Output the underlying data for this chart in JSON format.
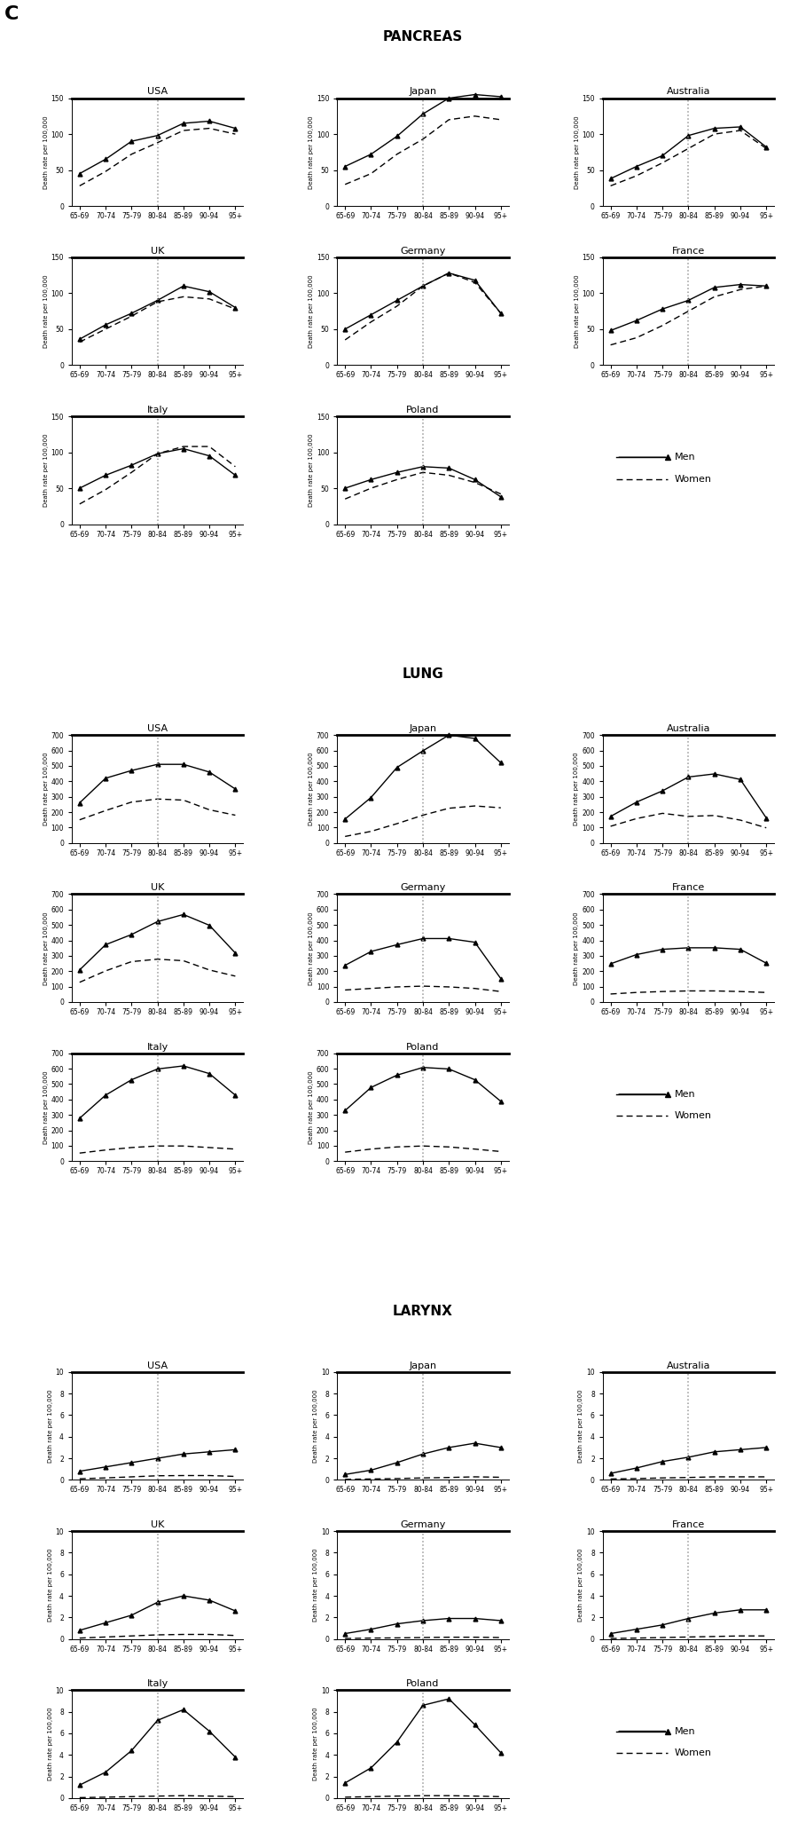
{
  "x_labels": [
    "65-69",
    "70-74",
    "75-79",
    "80-84",
    "85-89",
    "90-94",
    "95+"
  ],
  "x_vals": [
    0,
    1,
    2,
    3,
    4,
    5,
    6
  ],
  "pancreas": {
    "USA": {
      "men": [
        45,
        65,
        90,
        98,
        115,
        118,
        108
      ],
      "women": [
        28,
        48,
        72,
        88,
        105,
        108,
        100
      ]
    },
    "Japan": {
      "men": [
        55,
        72,
        97,
        128,
        150,
        155,
        152
      ],
      "women": [
        30,
        45,
        72,
        93,
        120,
        125,
        120
      ]
    },
    "Australia": {
      "men": [
        38,
        55,
        70,
        98,
        108,
        110,
        82
      ],
      "women": [
        28,
        42,
        60,
        80,
        100,
        105,
        80
      ]
    },
    "UK": {
      "men": [
        36,
        56,
        72,
        90,
        110,
        102,
        80
      ],
      "women": [
        32,
        50,
        68,
        88,
        95,
        92,
        78
      ]
    },
    "Germany": {
      "men": [
        50,
        70,
        90,
        110,
        128,
        118,
        72
      ],
      "women": [
        35,
        60,
        82,
        110,
        128,
        115,
        72
      ]
    },
    "France": {
      "men": [
        48,
        62,
        78,
        90,
        108,
        112,
        110
      ],
      "women": [
        28,
        38,
        55,
        75,
        95,
        105,
        110
      ]
    },
    "Italy": {
      "men": [
        50,
        68,
        82,
        98,
        105,
        95,
        68
      ],
      "women": [
        28,
        48,
        72,
        98,
        108,
        108,
        80
      ]
    },
    "Poland": {
      "men": [
        50,
        62,
        72,
        80,
        78,
        62,
        38
      ],
      "women": [
        35,
        50,
        62,
        72,
        68,
        58,
        42
      ]
    }
  },
  "lung": {
    "USA": {
      "men": [
        260,
        420,
        470,
        510,
        510,
        460,
        350
      ],
      "women": [
        150,
        210,
        265,
        285,
        278,
        215,
        180
      ]
    },
    "Japan": {
      "men": [
        155,
        295,
        490,
        598,
        700,
        678,
        520
      ],
      "women": [
        42,
        75,
        125,
        180,
        225,
        240,
        228
      ]
    },
    "Australia": {
      "men": [
        172,
        265,
        338,
        428,
        448,
        412,
        162
      ],
      "women": [
        108,
        158,
        192,
        172,
        178,
        148,
        98
      ]
    },
    "UK": {
      "men": [
        208,
        372,
        438,
        522,
        568,
        498,
        318
      ],
      "women": [
        128,
        202,
        262,
        278,
        268,
        208,
        168
      ]
    },
    "Germany": {
      "men": [
        238,
        328,
        372,
        412,
        412,
        388,
        152
      ],
      "women": [
        78,
        88,
        98,
        103,
        98,
        88,
        68
      ]
    },
    "France": {
      "men": [
        248,
        308,
        342,
        352,
        352,
        342,
        252
      ],
      "women": [
        52,
        62,
        68,
        72,
        72,
        68,
        62
      ]
    },
    "Italy": {
      "men": [
        278,
        428,
        528,
        598,
        618,
        568,
        428
      ],
      "women": [
        52,
        72,
        88,
        98,
        98,
        88,
        78
      ]
    },
    "Poland": {
      "men": [
        328,
        478,
        558,
        608,
        598,
        528,
        388
      ],
      "women": [
        58,
        78,
        92,
        98,
        92,
        78,
        62
      ]
    }
  },
  "larynx": {
    "USA": {
      "men": [
        0.8,
        1.2,
        1.6,
        2.0,
        2.4,
        2.6,
        2.8
      ],
      "women": [
        0.1,
        0.18,
        0.28,
        0.38,
        0.4,
        0.4,
        0.32
      ]
    },
    "Japan": {
      "men": [
        0.5,
        0.9,
        1.6,
        2.4,
        3.0,
        3.4,
        3.0
      ],
      "women": [
        0.05,
        0.08,
        0.12,
        0.18,
        0.22,
        0.28,
        0.24
      ]
    },
    "Australia": {
      "men": [
        0.6,
        1.1,
        1.7,
        2.1,
        2.6,
        2.8,
        3.0
      ],
      "women": [
        0.08,
        0.12,
        0.18,
        0.22,
        0.28,
        0.28,
        0.28
      ]
    },
    "UK": {
      "men": [
        0.8,
        1.5,
        2.2,
        3.4,
        4.0,
        3.6,
        2.6
      ],
      "women": [
        0.08,
        0.18,
        0.28,
        0.38,
        0.42,
        0.42,
        0.32
      ]
    },
    "Germany": {
      "men": [
        0.5,
        0.9,
        1.4,
        1.7,
        1.9,
        1.9,
        1.7
      ],
      "women": [
        0.04,
        0.08,
        0.1,
        0.13,
        0.16,
        0.16,
        0.13
      ]
    },
    "France": {
      "men": [
        0.5,
        0.9,
        1.3,
        1.9,
        2.4,
        2.7,
        2.7
      ],
      "women": [
        0.04,
        0.08,
        0.13,
        0.18,
        0.23,
        0.28,
        0.28
      ]
    },
    "Italy": {
      "men": [
        1.2,
        2.4,
        4.4,
        7.2,
        8.2,
        6.2,
        3.8
      ],
      "women": [
        0.04,
        0.08,
        0.13,
        0.18,
        0.22,
        0.18,
        0.13
      ]
    },
    "Poland": {
      "men": [
        1.4,
        2.8,
        5.2,
        8.6,
        9.2,
        6.8,
        4.2
      ],
      "women": [
        0.08,
        0.13,
        0.18,
        0.22,
        0.22,
        0.18,
        0.13
      ]
    }
  },
  "pancreas_ylim": [
    0,
    150
  ],
  "pancreas_yticks": [
    0,
    50,
    100,
    150
  ],
  "lung_ylim": [
    0,
    700
  ],
  "lung_yticks": [
    0,
    100,
    200,
    300,
    400,
    500,
    600,
    700
  ],
  "larynx_ylim": [
    0,
    10
  ],
  "larynx_yticks": [
    0,
    2,
    4,
    6,
    8,
    10
  ],
  "ylabel": "Death rate per 100,000"
}
